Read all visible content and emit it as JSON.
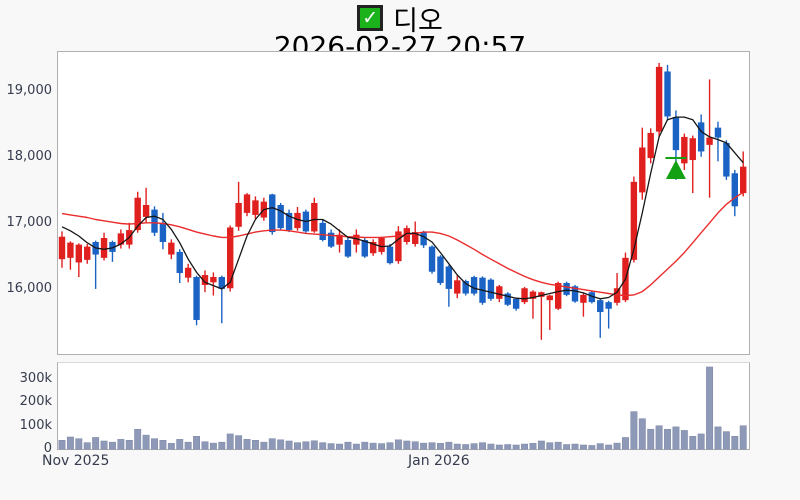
{
  "header": {
    "check_glyph": "✓",
    "symbol": "디오",
    "datetime": "2026-02-27 20:57"
  },
  "chart_data": {
    "type": "candlestick",
    "title": "디오",
    "subtitle": "2026-02-27 20:57",
    "y_axis": {
      "tick_labels": [
        "19,000",
        "18,000",
        "17,000",
        "16,000"
      ],
      "tick_values": [
        19000,
        18000,
        17000,
        16000
      ],
      "range": [
        15000,
        19600
      ]
    },
    "volume_axis": {
      "tick_labels": [
        "300k",
        "200k",
        "100k",
        "0"
      ],
      "tick_values": [
        300,
        200,
        100,
        0
      ],
      "unit": "thousand-shares",
      "range": [
        0,
        372
      ]
    },
    "x_axis": {
      "labels": [
        {
          "text": "Nov 2025",
          "index": 0
        },
        {
          "text": "Jan 2026",
          "index": 41
        }
      ]
    },
    "colors": {
      "up": "#e01f1f",
      "down": "#1a63c4",
      "ma_fast": "#161616",
      "ma_slow": "#ea2c2c",
      "volume": "#8e99b8",
      "marker": "#12a112",
      "panel_border": "#b0b0b0",
      "background": "#f8f8f8"
    },
    "marker": {
      "type": "triangle-up-with-line",
      "index": 73,
      "price": 17980
    },
    "candles_format": [
      "open",
      "high",
      "low",
      "close",
      "volume_k"
    ],
    "candles": [
      [
        16450,
        16870,
        16320,
        16790,
        38
      ],
      [
        16470,
        16720,
        16290,
        16700,
        52
      ],
      [
        16400,
        16690,
        16180,
        16670,
        45
      ],
      [
        16440,
        16680,
        16380,
        16640,
        28
      ],
      [
        16710,
        16730,
        16000,
        16520,
        50
      ],
      [
        16470,
        16850,
        16430,
        16770,
        35
      ],
      [
        16710,
        16730,
        16410,
        16560,
        30
      ],
      [
        16670,
        16900,
        16610,
        16840,
        42
      ],
      [
        16670,
        17000,
        16610,
        16890,
        38
      ],
      [
        16890,
        17470,
        16850,
        17380,
        85
      ],
      [
        17090,
        17530,
        17000,
        17270,
        60
      ],
      [
        17200,
        17250,
        16800,
        16850,
        45
      ],
      [
        17000,
        17150,
        16600,
        16710,
        38
      ],
      [
        16520,
        16750,
        16450,
        16700,
        25
      ],
      [
        16560,
        16600,
        16090,
        16240,
        42
      ],
      [
        16170,
        16380,
        16100,
        16320,
        30
      ],
      [
        16180,
        16200,
        15450,
        15530,
        55
      ],
      [
        16060,
        16280,
        15950,
        16210,
        32
      ],
      [
        16100,
        16250,
        15900,
        16180,
        26
      ],
      [
        16180,
        16200,
        15480,
        16000,
        30
      ],
      [
        16010,
        16960,
        15960,
        16930,
        65
      ],
      [
        16940,
        17620,
        16880,
        17300,
        58
      ],
      [
        17150,
        17450,
        17100,
        17430,
        42
      ],
      [
        17120,
        17400,
        17060,
        17340,
        38
      ],
      [
        17080,
        17380,
        17030,
        17320,
        30
      ],
      [
        17430,
        17440,
        16820,
        16860,
        45
      ],
      [
        17270,
        17300,
        16900,
        16920,
        40
      ],
      [
        17150,
        17200,
        16860,
        16890,
        35
      ],
      [
        16920,
        17240,
        16880,
        17150,
        28
      ],
      [
        17170,
        17200,
        16850,
        16870,
        32
      ],
      [
        16870,
        17380,
        16850,
        17300,
        36
      ],
      [
        17000,
        17050,
        16720,
        16740,
        28
      ],
      [
        16850,
        16900,
        16620,
        16640,
        24
      ],
      [
        16670,
        16900,
        16550,
        16820,
        22
      ],
      [
        16740,
        16780,
        16470,
        16490,
        30
      ],
      [
        16670,
        16900,
        16550,
        16820,
        22
      ],
      [
        16740,
        16780,
        16470,
        16490,
        30
      ],
      [
        16540,
        16750,
        16500,
        16710,
        26
      ],
      [
        16560,
        16790,
        16520,
        16770,
        24
      ],
      [
        16640,
        16680,
        16370,
        16390,
        28
      ],
      [
        16420,
        16950,
        16380,
        16870,
        40
      ],
      [
        16710,
        16960,
        16670,
        16920,
        35
      ],
      [
        16680,
        17020,
        16640,
        16860,
        32
      ],
      [
        16860,
        16880,
        16620,
        16660,
        26
      ],
      [
        16640,
        16660,
        16230,
        16260,
        28
      ],
      [
        16490,
        16510,
        16060,
        16090,
        25
      ],
      [
        16340,
        16360,
        15730,
        16000,
        30
      ],
      [
        15930,
        16200,
        15860,
        16130,
        22
      ],
      [
        16120,
        16140,
        15900,
        15930,
        20
      ],
      [
        16180,
        16200,
        15900,
        15930,
        24
      ],
      [
        16170,
        16190,
        15760,
        15790,
        28
      ],
      [
        16140,
        16160,
        15820,
        15850,
        22
      ],
      [
        15850,
        16060,
        15800,
        16040,
        18
      ],
      [
        15930,
        15950,
        15740,
        15760,
        20
      ],
      [
        15850,
        15870,
        15670,
        15700,
        18
      ],
      [
        15800,
        16030,
        15770,
        16010,
        22
      ],
      [
        15850,
        15980,
        15550,
        15960,
        25
      ],
      [
        15880,
        15960,
        15230,
        15950,
        35
      ],
      [
        15830,
        15910,
        15380,
        15900,
        28
      ],
      [
        15700,
        16110,
        15680,
        16090,
        30
      ],
      [
        16090,
        16110,
        15890,
        15910,
        20
      ],
      [
        16040,
        16060,
        15790,
        15810,
        22
      ],
      [
        15790,
        15930,
        15580,
        15910,
        18
      ],
      [
        15950,
        15970,
        15780,
        15800,
        16
      ],
      [
        15830,
        15850,
        15260,
        15650,
        24
      ],
      [
        15800,
        15820,
        15400,
        15700,
        18
      ],
      [
        15790,
        16240,
        15750,
        16010,
        26
      ],
      [
        15830,
        16550,
        15800,
        16470,
        50
      ],
      [
        16440,
        17700,
        16400,
        17620,
        160
      ],
      [
        17460,
        18440,
        17350,
        18140,
        130
      ],
      [
        17980,
        18430,
        17900,
        18360,
        85
      ],
      [
        18380,
        19420,
        18300,
        19360,
        100
      ],
      [
        19290,
        19390,
        18550,
        18610,
        85
      ],
      [
        18600,
        18700,
        17650,
        18100,
        95
      ],
      [
        17900,
        18350,
        17800,
        18300,
        80
      ],
      [
        17950,
        18320,
        17450,
        18280,
        55
      ],
      [
        18520,
        18640,
        18000,
        18080,
        65
      ],
      [
        18180,
        19170,
        17380,
        18290,
        350
      ],
      [
        18440,
        18530,
        17930,
        18290,
        95
      ],
      [
        18210,
        18250,
        17650,
        17700,
        75
      ],
      [
        17750,
        17800,
        17100,
        17250,
        55
      ],
      [
        17450,
        18080,
        17400,
        17850,
        100
      ]
    ],
    "ma_fast": [
      16940,
      16880,
      16800,
      16700,
      16620,
      16600,
      16620,
      16680,
      16780,
      16950,
      17080,
      17100,
      17050,
      16900,
      16700,
      16450,
      16250,
      16100,
      16050,
      16000,
      16100,
      16450,
      16800,
      17050,
      17200,
      17230,
      17180,
      17100,
      17050,
      17020,
      17050,
      17050,
      16980,
      16880,
      16780,
      16760,
      16720,
      16680,
      16640,
      16650,
      16750,
      16840,
      16840,
      16790,
      16710,
      16550,
      16380,
      16210,
      16080,
      16010,
      15980,
      15950,
      15920,
      15890,
      15860,
      15850,
      15870,
      15900,
      15930,
      15960,
      15980,
      15970,
      15940,
      15890,
      15850,
      15870,
      15950,
      16150,
      16600,
      17150,
      17750,
      18300,
      18560,
      18600,
      18600,
      18560,
      18380,
      18300,
      18260,
      18210,
      18060,
      17910
    ],
    "ma_slow": [
      17140,
      17120,
      17100,
      17080,
      17050,
      17030,
      17010,
      16990,
      16980,
      16990,
      17000,
      17000,
      16990,
      16970,
      16940,
      16900,
      16860,
      16830,
      16800,
      16780,
      16780,
      16800,
      16830,
      16860,
      16880,
      16890,
      16890,
      16880,
      16860,
      16840,
      16830,
      16820,
      16810,
      16800,
      16790,
      16785,
      16780,
      16780,
      16780,
      16790,
      16800,
      16820,
      16840,
      16860,
      16860,
      16840,
      16800,
      16740,
      16670,
      16600,
      16520,
      16450,
      16380,
      16310,
      16250,
      16190,
      16140,
      16100,
      16070,
      16050,
      16030,
      16010,
      15990,
      15970,
      15950,
      15930,
      15910,
      15900,
      15910,
      15960,
      16060,
      16180,
      16300,
      16420,
      16550,
      16700,
      16850,
      17000,
      17150,
      17280,
      17380,
      17460
    ]
  }
}
